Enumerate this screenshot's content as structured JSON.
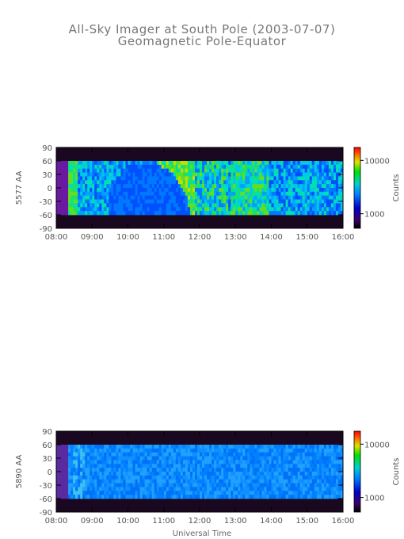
{
  "title": "All-Sky Imager at South Pole (2003-07-07)",
  "subtitle": "Geomagnetic Pole-Equator",
  "xlabel": "Universal Time",
  "chart_data": [
    {
      "type": "heatmap",
      "ylabel": "5577 AA",
      "colorbar_label": "Counts",
      "colorbar_ticks": [
        "10000",
        "1000"
      ],
      "scale": "log",
      "x_ticks": [
        "08:00",
        "09:00",
        "10:00",
        "11:00",
        "12:00",
        "13:00",
        "14:00",
        "15:00",
        "16:00"
      ],
      "y_ticks": [
        "90",
        "60",
        "30",
        "0",
        "-30",
        "-60",
        "-90"
      ],
      "xlim": [
        "08:00",
        "16:00"
      ],
      "ylim": [
        -90,
        90
      ],
      "valid_band": [
        -60,
        60
      ],
      "description_level": "bright green/yellow patches mixed with blue; large blue arc from 09:30 to 11:00"
    },
    {
      "type": "heatmap",
      "ylabel": "5890 AA",
      "colorbar_label": "Counts",
      "colorbar_ticks": [
        "10000",
        "1000"
      ],
      "scale": "log",
      "x_ticks": [
        "08:00",
        "09:00",
        "10:00",
        "11:00",
        "12:00",
        "13:00",
        "14:00",
        "15:00",
        "16:00"
      ],
      "y_ticks": [
        "90",
        "60",
        "30",
        "0",
        "-30",
        "-60",
        "-90"
      ],
      "xlim": [
        "08:00",
        "16:00"
      ],
      "ylim": [
        -90,
        90
      ],
      "valid_band": [
        -60,
        60
      ],
      "description_level": "mostly uniform cyan-blue"
    }
  ]
}
